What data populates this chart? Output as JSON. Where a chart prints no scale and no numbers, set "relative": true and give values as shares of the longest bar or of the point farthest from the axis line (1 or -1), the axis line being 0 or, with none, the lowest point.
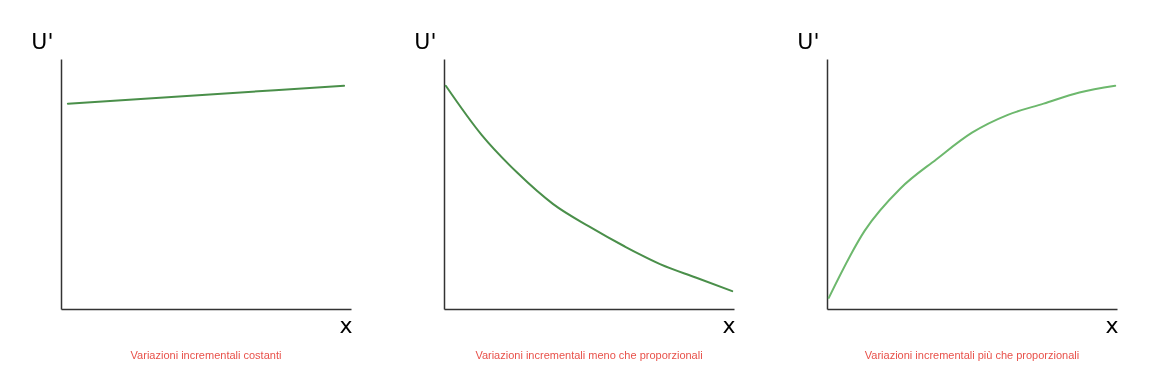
{
  "chart_data": [
    {
      "type": "line",
      "relative": true,
      "categories": [
        null,
        null,
        null
      ],
      "values": [
        0.92,
        0.96,
        1
      ],
      "color": "#4a8f4a",
      "xlabel": "x",
      "ylabel": "U'",
      "annotations": [
        "Variazioni incrementali costanti"
      ],
      "grid": false
    },
    {
      "type": "line",
      "relative": true,
      "categories": [
        null,
        null,
        null,
        null,
        null,
        null,
        null,
        null,
        null
      ],
      "values": [
        1,
        0.78,
        0.61,
        0.47,
        0.37,
        0.28,
        0.2,
        0.14,
        0.08
      ],
      "color": "#4a8f4a",
      "xlabel": "x",
      "ylabel": "U'",
      "annotations": [
        "Variazioni incrementali meno che proporzionali"
      ],
      "grid": false
    },
    {
      "type": "line",
      "relative": true,
      "categories": [
        null,
        null,
        null,
        null,
        null,
        null,
        null,
        null,
        null
      ],
      "values": [
        0.05,
        0.35,
        0.54,
        0.67,
        0.79,
        0.87,
        0.92,
        0.97,
        1
      ],
      "color": "#6db86d",
      "xlabel": "x",
      "ylabel": "U'",
      "annotations": [
        "Variazioni incrementali più che proporzionali"
      ],
      "grid": false
    }
  ]
}
